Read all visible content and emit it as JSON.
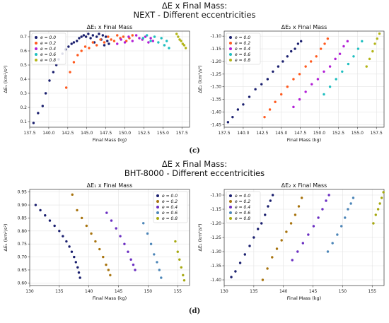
{
  "panels": [
    {
      "title_line1": "ΔE x Final Mass:",
      "title_line2": "NEXT - Different eccentricities",
      "caption": "(c)"
    },
    {
      "title_line1": "ΔE x Final Mass:",
      "title_line2": "BHT-8000 - Different eccentricities",
      "caption": "(d)"
    }
  ],
  "colors": {
    "c_00": "#1a1f6e",
    "c_02": "#ff5a1f",
    "c_04": "#b21fd6",
    "c_06": "#1fbfc0",
    "c_08": "#b3b518",
    "d_00": "#1a1f6e",
    "d_02": "#a8740f",
    "d_04": "#6b2fc2",
    "d_06": "#4d86b8",
    "d_08": "#a6a80f"
  },
  "chart_data": [
    {
      "id": "c-left",
      "type": "scatter",
      "title": "ΔE₁ x Final Mass",
      "xlabel": "Final Mass (kg)",
      "ylabel": "ΔE₁ (km²/s²)",
      "xlim": [
        137.5,
        158.5
      ],
      "ylim": [
        0.06,
        0.74
      ],
      "xticks": [
        137.5,
        140.0,
        142.5,
        145.0,
        147.5,
        150.0,
        152.5,
        155.0,
        157.5
      ],
      "yticks": [
        0.1,
        0.2,
        0.3,
        0.4,
        0.5,
        0.6,
        0.7
      ],
      "tick_decimals_x": 1,
      "tick_decimals_y": 1,
      "grid": true,
      "legend": "top-left",
      "series": [
        {
          "name": "e = 0.0",
          "color_key": "c_00",
          "x": [
            138.0,
            138.6,
            139.2,
            139.6,
            140.1,
            140.6,
            141.0,
            141.3,
            141.8,
            142.2,
            142.6,
            143.0,
            143.3,
            143.7,
            144.0,
            144.3,
            144.6,
            144.9,
            145.2,
            145.5,
            145.8,
            146.0,
            146.3,
            146.6,
            146.9,
            147.1,
            147.3,
            147.5,
            147.7,
            147.9
          ],
          "y": [
            0.09,
            0.16,
            0.21,
            0.3,
            0.39,
            0.45,
            0.5,
            0.54,
            0.58,
            0.61,
            0.63,
            0.65,
            0.66,
            0.67,
            0.69,
            0.7,
            0.71,
            0.7,
            0.72,
            0.69,
            0.71,
            0.66,
            0.7,
            0.72,
            0.68,
            0.71,
            0.64,
            0.7,
            0.67,
            0.65
          ]
        },
        {
          "name": "e = 0.2",
          "color_key": "c_02",
          "x": [
            142.3,
            142.8,
            143.3,
            143.8,
            144.3,
            144.8,
            145.3,
            145.8,
            146.3,
            146.8,
            147.3,
            147.8,
            148.2,
            148.6,
            149.0,
            149.4,
            149.8,
            150.2,
            150.6,
            151.0
          ],
          "y": [
            0.34,
            0.45,
            0.52,
            0.57,
            0.6,
            0.63,
            0.62,
            0.66,
            0.64,
            0.68,
            0.66,
            0.7,
            0.68,
            0.67,
            0.71,
            0.69,
            0.7,
            0.67,
            0.69,
            0.71
          ]
        },
        {
          "name": "e = 0.4",
          "color_key": "c_04",
          "x": [
            149.0,
            149.5,
            150.0,
            150.5,
            151.0,
            151.5,
            151.9,
            152.3,
            152.7,
            153.1,
            153.4,
            153.7
          ],
          "y": [
            0.65,
            0.68,
            0.66,
            0.7,
            0.67,
            0.71,
            0.69,
            0.68,
            0.7,
            0.66,
            0.69,
            0.67
          ]
        },
        {
          "name": "e = 0.6",
          "color_key": "c_06",
          "x": [
            152.4,
            152.9,
            153.4,
            153.9,
            154.4,
            154.8,
            155.2,
            155.5,
            155.8
          ],
          "y": [
            0.69,
            0.71,
            0.67,
            0.7,
            0.66,
            0.69,
            0.64,
            0.67,
            0.62
          ]
        },
        {
          "name": "e = 0.8",
          "color_key": "c_08",
          "x": [
            156.8,
            157.0,
            157.2,
            157.4,
            157.6,
            157.8,
            158.0
          ],
          "y": [
            0.72,
            0.7,
            0.68,
            0.67,
            0.65,
            0.64,
            0.62
          ]
        }
      ]
    },
    {
      "id": "c-right",
      "type": "scatter",
      "title": "ΔE₂ x Final Mass",
      "xlabel": "Final Mass (kg)",
      "ylabel": "ΔE₂ (km²/s²)",
      "xlim": [
        137.5,
        158.5
      ],
      "ylim": [
        -1.46,
        -1.08
      ],
      "xticks": [
        137.5,
        140.0,
        142.5,
        145.0,
        147.5,
        150.0,
        152.5,
        155.0,
        157.5
      ],
      "yticks": [
        -1.45,
        -1.4,
        -1.35,
        -1.3,
        -1.25,
        -1.2,
        -1.15,
        -1.1
      ],
      "tick_decimals_x": 1,
      "tick_decimals_y": 2,
      "grid": true,
      "legend": "top-left",
      "series": [
        {
          "name": "e = 0.0",
          "color_key": "c_00",
          "x": [
            138.0,
            138.6,
            139.3,
            140.0,
            140.8,
            141.6,
            142.4,
            143.2,
            143.9,
            144.6,
            145.2,
            145.8,
            146.3,
            146.8,
            147.2,
            147.6
          ],
          "y": [
            -1.44,
            -1.42,
            -1.39,
            -1.37,
            -1.34,
            -1.31,
            -1.29,
            -1.27,
            -1.24,
            -1.22,
            -1.2,
            -1.18,
            -1.16,
            -1.15,
            -1.13,
            -1.12
          ]
        },
        {
          "name": "e = 0.2",
          "color_key": "c_02",
          "x": [
            142.8,
            143.5,
            144.2,
            145.0,
            145.8,
            146.6,
            147.4,
            148.2,
            148.9,
            149.6,
            150.2,
            150.7,
            151.1
          ],
          "y": [
            -1.42,
            -1.39,
            -1.36,
            -1.33,
            -1.3,
            -1.27,
            -1.25,
            -1.22,
            -1.2,
            -1.18,
            -1.15,
            -1.13,
            -1.11
          ]
        },
        {
          "name": "e = 0.4",
          "color_key": "c_04",
          "x": [
            146.6,
            147.4,
            148.2,
            149.0,
            149.8,
            150.6,
            151.4,
            152.1,
            152.7,
            153.2,
            153.7
          ],
          "y": [
            -1.38,
            -1.35,
            -1.32,
            -1.29,
            -1.27,
            -1.24,
            -1.22,
            -1.19,
            -1.17,
            -1.14,
            -1.12
          ]
        },
        {
          "name": "e = 0.6",
          "color_key": "c_06",
          "x": [
            150.6,
            151.4,
            152.2,
            153.0,
            153.8,
            154.5,
            155.1,
            155.6
          ],
          "y": [
            -1.33,
            -1.3,
            -1.27,
            -1.24,
            -1.21,
            -1.18,
            -1.15,
            -1.12
          ]
        },
        {
          "name": "e = 0.8",
          "color_key": "c_08",
          "x": [
            156.2,
            156.6,
            157.0,
            157.3,
            157.6,
            157.9
          ],
          "y": [
            -1.22,
            -1.19,
            -1.16,
            -1.13,
            -1.11,
            -1.09
          ]
        }
      ]
    },
    {
      "id": "d-left",
      "type": "scatter",
      "title": "ΔE₁ x Final Mass",
      "xlabel": "Final Mass (kg)",
      "ylabel": "ΔE₁ (km²/s²)",
      "xlim": [
        130,
        157
      ],
      "ylim": [
        0.59,
        0.96
      ],
      "xticks": [
        130,
        135,
        140,
        145,
        150,
        155
      ],
      "yticks": [
        0.6,
        0.65,
        0.7,
        0.75,
        0.8,
        0.85,
        0.9,
        0.95
      ],
      "tick_decimals_x": 0,
      "tick_decimals_y": 2,
      "grid": true,
      "legend": "top-right",
      "series": [
        {
          "name": "e = 0.0",
          "color_key": "d_00",
          "x": [
            131.0,
            131.8,
            132.6,
            133.4,
            134.2,
            135.0,
            135.6,
            136.2,
            136.7,
            137.1,
            137.5,
            137.8,
            138.1,
            138.3,
            138.5
          ],
          "y": [
            0.9,
            0.88,
            0.86,
            0.84,
            0.82,
            0.8,
            0.78,
            0.76,
            0.74,
            0.72,
            0.7,
            0.68,
            0.66,
            0.64,
            0.62
          ]
        },
        {
          "name": "e = 0.2",
          "color_key": "d_02",
          "x": [
            137.2,
            138.0,
            138.8,
            139.6,
            140.4,
            141.1,
            141.8,
            142.4,
            142.9,
            143.3,
            143.6
          ],
          "y": [
            0.94,
            0.88,
            0.85,
            0.82,
            0.79,
            0.76,
            0.73,
            0.7,
            0.67,
            0.65,
            0.63
          ]
        },
        {
          "name": "e = 0.4",
          "color_key": "d_04",
          "x": [
            143.0,
            143.8,
            144.6,
            145.3,
            146.0,
            146.6,
            147.1,
            147.5,
            147.8
          ],
          "y": [
            0.87,
            0.84,
            0.81,
            0.78,
            0.75,
            0.72,
            0.69,
            0.67,
            0.65
          ]
        },
        {
          "name": "e = 0.6",
          "color_key": "d_06",
          "x": [
            149.2,
            149.9,
            150.5,
            151.0,
            151.5,
            151.9,
            152.2
          ],
          "y": [
            0.83,
            0.79,
            0.75,
            0.71,
            0.68,
            0.65,
            0.62
          ]
        },
        {
          "name": "e = 0.8",
          "color_key": "d_08",
          "x": [
            154.6,
            155.0,
            155.3,
            155.6,
            155.9,
            156.1
          ],
          "y": [
            0.76,
            0.72,
            0.69,
            0.66,
            0.63,
            0.61
          ]
        }
      ]
    },
    {
      "id": "d-right",
      "type": "scatter",
      "title": "ΔE₂ x Final Mass",
      "xlabel": "Final Mass (kg)",
      "ylabel": "ΔE₂ (km²/s²)",
      "xlim": [
        130,
        157
      ],
      "ylim": [
        -1.42,
        -1.08
      ],
      "xticks": [
        130,
        135,
        140,
        145,
        150,
        155
      ],
      "yticks": [
        -1.4,
        -1.35,
        -1.3,
        -1.25,
        -1.2,
        -1.15,
        -1.1
      ],
      "tick_decimals_x": 0,
      "tick_decimals_y": 2,
      "grid": true,
      "legend": "top-left",
      "series": [
        {
          "name": "e = 0.0",
          "color_key": "d_00",
          "x": [
            131.2,
            131.9,
            132.7,
            133.5,
            134.3,
            135.0,
            135.7,
            136.3,
            136.9,
            137.4,
            137.8,
            138.2
          ],
          "y": [
            -1.39,
            -1.37,
            -1.34,
            -1.31,
            -1.28,
            -1.25,
            -1.22,
            -1.2,
            -1.17,
            -1.14,
            -1.12,
            -1.1
          ]
        },
        {
          "name": "e = 0.2",
          "color_key": "d_02",
          "x": [
            136.5,
            137.3,
            138.1,
            138.9,
            139.7,
            140.5,
            141.3,
            142.0,
            142.6,
            143.1
          ],
          "y": [
            -1.4,
            -1.36,
            -1.32,
            -1.29,
            -1.26,
            -1.23,
            -1.2,
            -1.17,
            -1.14,
            -1.11
          ]
        },
        {
          "name": "e = 0.4",
          "color_key": "d_04",
          "x": [
            141.5,
            142.4,
            143.3,
            144.2,
            145.1,
            145.9,
            146.6,
            147.2,
            147.7
          ],
          "y": [
            -1.33,
            -1.3,
            -1.27,
            -1.24,
            -1.21,
            -1.18,
            -1.15,
            -1.12,
            -1.1
          ]
        },
        {
          "name": "e = 0.6",
          "color_key": "d_06",
          "x": [
            147.5,
            148.3,
            149.1,
            149.8,
            150.4,
            150.9,
            151.4,
            151.8
          ],
          "y": [
            -1.3,
            -1.27,
            -1.24,
            -1.21,
            -1.18,
            -1.15,
            -1.13,
            -1.11
          ]
        },
        {
          "name": "e = 0.8",
          "color_key": "d_08",
          "x": [
            155.2,
            155.6,
            156.0,
            156.3,
            156.6,
            156.9
          ],
          "y": [
            -1.2,
            -1.17,
            -1.15,
            -1.13,
            -1.11,
            -1.09
          ]
        }
      ]
    }
  ]
}
